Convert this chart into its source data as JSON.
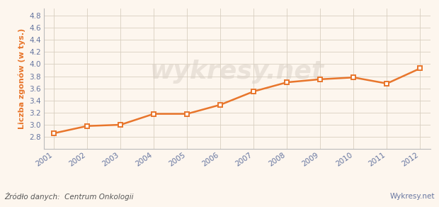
{
  "years": [
    2001,
    2002,
    2003,
    2004,
    2005,
    2006,
    2007,
    2008,
    2009,
    2010,
    2011,
    2012
  ],
  "values": [
    2.86,
    2.98,
    3.0,
    3.18,
    3.18,
    3.33,
    3.55,
    3.7,
    3.75,
    3.78,
    3.68,
    3.93
  ],
  "line_color": "#e8762c",
  "marker_color": "#e8762c",
  "marker_face": "#ffffff",
  "background_color": "#fdf6ee",
  "plot_bg_color": "#fdf6ee",
  "grid_color": "#d8cfc0",
  "ylabel": "Liczba zgonów (w tys.)",
  "ylabel_color": "#e8762c",
  "source_text": "Źródło danych:  Centrum Onkologii",
  "watermark_text": "wykresy.net",
  "brand_text": "Wykresy.net",
  "ylim_min": 2.6,
  "ylim_max": 4.92,
  "yticks": [
    2.8,
    3.0,
    3.2,
    3.4,
    3.6,
    3.8,
    4.0,
    4.2,
    4.4,
    4.6,
    4.8
  ],
  "tick_color": "#6676a0",
  "spine_color": "#bbbbbb",
  "footer_bg": "#e8e8e8",
  "source_fontsize": 7.5,
  "brand_fontsize": 7.5
}
